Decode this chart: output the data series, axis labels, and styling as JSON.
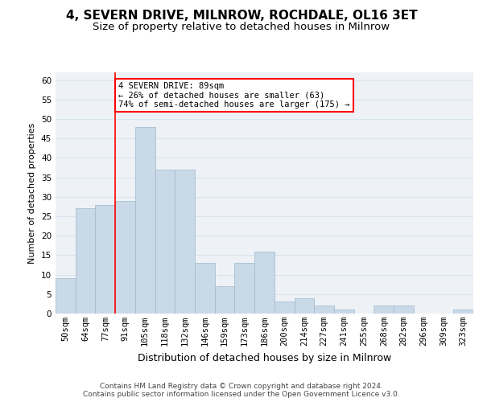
{
  "title": "4, SEVERN DRIVE, MILNROW, ROCHDALE, OL16 3ET",
  "subtitle": "Size of property relative to detached houses in Milnrow",
  "xlabel": "Distribution of detached houses by size in Milnrow",
  "ylabel": "Number of detached properties",
  "categories": [
    "50sqm",
    "64sqm",
    "77sqm",
    "91sqm",
    "105sqm",
    "118sqm",
    "132sqm",
    "146sqm",
    "159sqm",
    "173sqm",
    "186sqm",
    "200sqm",
    "214sqm",
    "227sqm",
    "241sqm",
    "255sqm",
    "268sqm",
    "282sqm",
    "296sqm",
    "309sqm",
    "323sqm"
  ],
  "values": [
    9,
    27,
    28,
    29,
    48,
    37,
    37,
    13,
    7,
    13,
    16,
    3,
    4,
    2,
    1,
    0,
    2,
    2,
    0,
    0,
    1
  ],
  "bar_color": "#c9d9e8",
  "bar_edge_color": "#a0b8cc",
  "property_line_index": 3,
  "property_sqm": 89,
  "annotation_text": "4 SEVERN DRIVE: 89sqm\n← 26% of detached houses are smaller (63)\n74% of semi-detached houses are larger (175) →",
  "annotation_box_color": "white",
  "annotation_box_edge_color": "red",
  "property_line_color": "red",
  "ylim": [
    0,
    62
  ],
  "yticks": [
    0,
    5,
    10,
    15,
    20,
    25,
    30,
    35,
    40,
    45,
    50,
    55,
    60
  ],
  "grid_color": "#d8e4f0",
  "background_color": "#eef2f7",
  "footer_line1": "Contains HM Land Registry data © Crown copyright and database right 2024.",
  "footer_line2": "Contains public sector information licensed under the Open Government Licence v3.0.",
  "title_fontsize": 11,
  "subtitle_fontsize": 9.5,
  "xlabel_fontsize": 9,
  "ylabel_fontsize": 8,
  "tick_fontsize": 7.5,
  "annotation_fontsize": 7.5,
  "footer_fontsize": 6.5
}
